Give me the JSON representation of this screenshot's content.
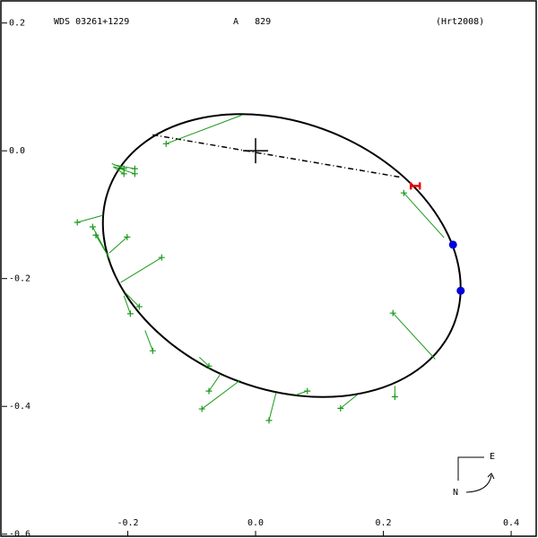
{
  "chart_data": {
    "type": "orbit",
    "title": "WDS 03261+1229",
    "component": "A   829",
    "reference": "(Hrt2008)",
    "compass": {
      "east": "E",
      "north": "N"
    },
    "xlim": [
      -0.4,
      0.442
    ],
    "ylim": [
      -0.606,
      0.236
    ],
    "xticks": [
      -0.2,
      {
        "value": 0,
        "label": "0.0"
      },
      0.2,
      0.4
    ],
    "yticks": [
      0.2,
      {
        "value": 0,
        "label": "0.0"
      },
      -0.2,
      -0.4,
      -0.6
    ],
    "orbit": {
      "cx": 0.041,
      "cy": -0.164,
      "a": 0.29,
      "b": 0.208,
      "angle": -22,
      "color": "#000000"
    },
    "nodes_line": {
      "x": [
        -0.161,
        0.225
      ],
      "y": [
        0.025,
        -0.041
      ]
    },
    "observations": {
      "color": "#1a9a1a",
      "x": [
        -0.14,
        -0.206,
        -0.189,
        -0.189,
        -0.206,
        -0.279,
        -0.255,
        -0.25,
        -0.201,
        -0.147,
        -0.182,
        -0.196,
        -0.161,
        -0.073,
        -0.073,
        -0.084,
        0.021,
        0.081,
        0.133,
        0.218,
        0.215,
        0.232
      ],
      "y": [
        0.011,
        -0.028,
        -0.028,
        -0.036,
        -0.036,
        -0.112,
        -0.119,
        -0.132,
        -0.135,
        -0.167,
        -0.244,
        -0.255,
        -0.313,
        -0.337,
        -0.376,
        -0.404,
        -0.422,
        -0.376,
        -0.403,
        -0.385,
        -0.254,
        -0.066
      ],
      "ox": [
        -0.021,
        -0.225,
        -0.222,
        -0.221,
        -0.223,
        -0.239,
        -0.229,
        -0.229,
        -0.229,
        -0.211,
        -0.204,
        -0.206,
        -0.173,
        -0.088,
        -0.056,
        -0.024,
        0.032,
        0.063,
        0.159,
        0.218,
        0.281,
        0.295
      ],
      "oy": [
        0.056,
        -0.02,
        -0.022,
        -0.025,
        -0.025,
        -0.101,
        -0.168,
        -0.168,
        -0.16,
        -0.206,
        -0.222,
        -0.227,
        -0.281,
        -0.323,
        -0.351,
        -0.359,
        -0.379,
        -0.382,
        -0.382,
        -0.368,
        -0.326,
        -0.136
      ]
    },
    "markers": {
      "color": "#0000dd",
      "x": [
        0.309,
        0.321
      ],
      "y": [
        -0.147,
        -0.219
      ]
    },
    "periastron": {
      "color": "#ee0000",
      "x": 0.25,
      "y": -0.055
    }
  }
}
